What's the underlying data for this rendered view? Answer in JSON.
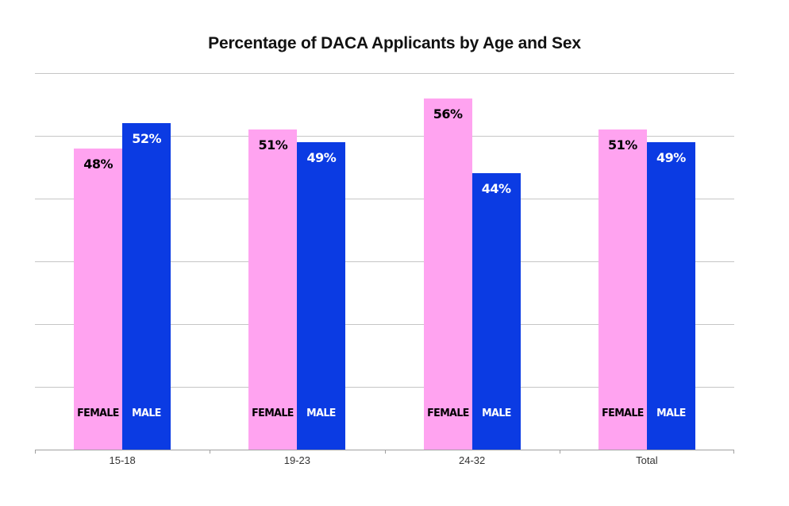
{
  "title": "Percentage of DACA Applicants by Age and Sex",
  "colors": {
    "female_bar": "#FFA3F0",
    "male_bar": "#0B3BE3",
    "female_label_text": "#000000",
    "male_label_text": "#FFFFFF",
    "gridline": "#C6C6C6",
    "axis": "#A0A0A0"
  },
  "chart_data": {
    "type": "bar",
    "title": "Percentage of DACA Applicants by Age and Sex",
    "categories": [
      "15-18",
      "19-23",
      "24-32",
      "Total"
    ],
    "series": [
      {
        "name": "FEMALE",
        "color": "#FFA3F0",
        "values": [
          48,
          51,
          56,
          51
        ]
      },
      {
        "name": "MALE",
        "color": "#0B3BE3",
        "values": [
          52,
          49,
          44,
          49
        ]
      }
    ],
    "value_labels": [
      [
        "48%",
        "51%",
        "56%",
        "51%"
      ],
      [
        "52%",
        "49%",
        "44%",
        "49%"
      ]
    ],
    "xlabel": "",
    "ylabel": "",
    "ylim": [
      0,
      60
    ],
    "gridline_step": 10,
    "y_axis_labels_visible": false,
    "grid": true,
    "legend_position": "series names printed inside each bar near the bottom"
  },
  "groups": [
    {
      "category": "15-18",
      "female": {
        "series": "FEMALE",
        "value": 48,
        "label": "48%"
      },
      "male": {
        "series": "MALE",
        "value": 52,
        "label": "52%"
      }
    },
    {
      "category": "19-23",
      "female": {
        "series": "FEMALE",
        "value": 51,
        "label": "51%"
      },
      "male": {
        "series": "MALE",
        "value": 49,
        "label": "49%"
      }
    },
    {
      "category": "24-32",
      "female": {
        "series": "FEMALE",
        "value": 56,
        "label": "56%"
      },
      "male": {
        "series": "MALE",
        "value": 44,
        "label": "44%"
      }
    },
    {
      "category": "Total",
      "female": {
        "series": "FEMALE",
        "value": 51,
        "label": "51%"
      },
      "male": {
        "series": "MALE",
        "value": 49,
        "label": "49%"
      }
    }
  ]
}
